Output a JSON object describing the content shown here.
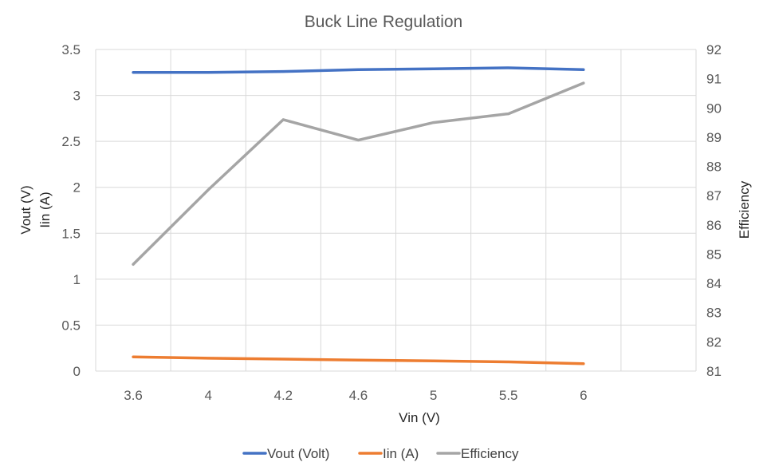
{
  "chart_data": {
    "type": "line",
    "title": "Buck Line Regulation",
    "xlabel": "Vin (V)",
    "ylabel_lines": [
      "Vout (V)",
      "Iin (A)"
    ],
    "y2label": "Efficiency",
    "categories": [
      "3.6",
      "4",
      "4.2",
      "4.6",
      "5",
      "5.5",
      "6"
    ],
    "ylim": [
      0,
      3.5
    ],
    "yticks": [
      "0",
      "0.5",
      "1",
      "1.5",
      "2",
      "2.5",
      "3",
      "3.5"
    ],
    "y2lim": [
      81,
      92
    ],
    "y2ticks": [
      "81",
      "82",
      "83",
      "84",
      "85",
      "86",
      "87",
      "88",
      "89",
      "90",
      "91",
      "92"
    ],
    "grid": true,
    "legend_position": "bottom",
    "series": [
      {
        "name": "Vout (Volt)",
        "axis": "left",
        "color": "#4472c4",
        "values": [
          3.25,
          3.25,
          3.26,
          3.28,
          3.29,
          3.3,
          3.28
        ]
      },
      {
        "name": "Iin (A)",
        "axis": "left",
        "color": "#ed7d31",
        "values": [
          0.155,
          0.14,
          0.13,
          0.12,
          0.11,
          0.1,
          0.08
        ]
      },
      {
        "name": "Efficiency",
        "axis": "right",
        "color": "#a5a5a5",
        "values": [
          84.65,
          87.2,
          89.6,
          88.9,
          89.5,
          89.8,
          90.85
        ]
      }
    ]
  }
}
